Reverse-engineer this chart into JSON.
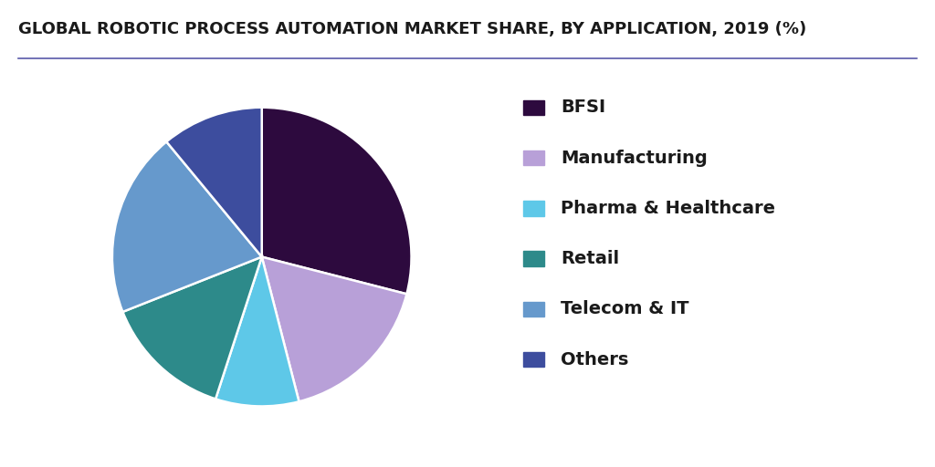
{
  "title": "GLOBAL ROBOTIC PROCESS AUTOMATION MARKET SHARE, BY APPLICATION, 2019 (%)",
  "labels": [
    "BFSI",
    "Manufacturing",
    "Pharma & Healthcare",
    "Retail",
    "Telecom & IT",
    "Others"
  ],
  "values": [
    29,
    17,
    9,
    14,
    20,
    11
  ],
  "colors": [
    "#2d0a3e",
    "#b8a0d8",
    "#5ec8e8",
    "#2d8a8a",
    "#6699cc",
    "#3d4d9e"
  ],
  "background_color": "#ffffff",
  "title_fontsize": 13,
  "legend_fontsize": 14,
  "title_color": "#1a1a1a",
  "line_color": "#5a5aaa"
}
